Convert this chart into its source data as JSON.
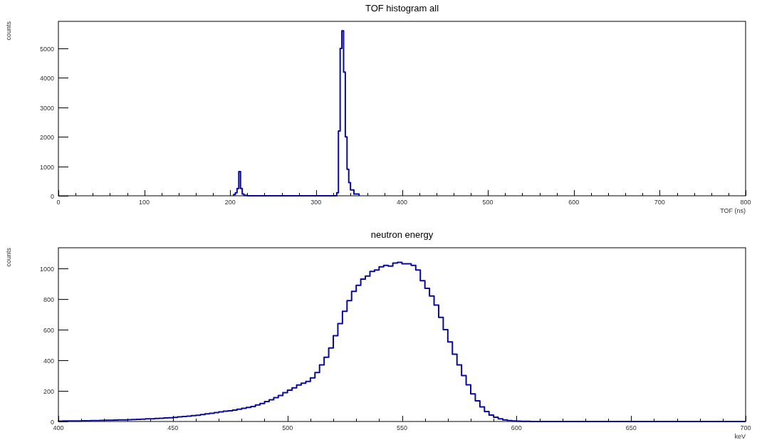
{
  "chart_data": [
    {
      "type": "histogram",
      "title": "TOF histogram all",
      "xlabel": "TOF (ns)",
      "ylabel": "counts",
      "color": "#0a0a99",
      "bins": [
        204,
        206,
        208,
        210,
        212,
        214,
        216,
        220,
        324,
        326,
        328,
        330,
        332,
        334,
        336,
        338,
        340,
        344,
        350
      ],
      "values": [
        40,
        100,
        250,
        820,
        250,
        60,
        20,
        0,
        100,
        2200,
        5000,
        5600,
        4200,
        2000,
        900,
        450,
        200,
        60
      ],
      "xlim": [
        0,
        800
      ],
      "ylim": [
        0,
        5920
      ],
      "xticks": [
        0,
        {
          "value": 20,
          "label": null
        },
        {
          "value": 40,
          "label": null
        },
        {
          "value": 60,
          "label": null
        },
        {
          "value": 80,
          "label": null
        },
        100,
        {
          "value": 120,
          "label": null
        },
        {
          "value": 140,
          "label": null
        },
        {
          "value": 160,
          "label": null
        },
        {
          "value": 180,
          "label": null
        },
        200,
        {
          "value": 220,
          "label": null
        },
        {
          "value": 240,
          "label": null
        },
        {
          "value": 260,
          "label": null
        },
        {
          "value": 280,
          "label": null
        },
        300,
        {
          "value": 320,
          "label": null
        },
        {
          "value": 340,
          "label": null
        },
        {
          "value": 360,
          "label": null
        },
        {
          "value": 380,
          "label": null
        },
        400,
        {
          "value": 420,
          "label": null
        },
        {
          "value": 440,
          "label": null
        },
        {
          "value": 460,
          "label": null
        },
        {
          "value": 480,
          "label": null
        },
        500,
        {
          "value": 520,
          "label": null
        },
        {
          "value": 540,
          "label": null
        },
        {
          "value": 560,
          "label": null
        },
        {
          "value": 580,
          "label": null
        },
        600,
        {
          "value": 620,
          "label": null
        },
        {
          "value": 640,
          "label": null
        },
        {
          "value": 660,
          "label": null
        },
        {
          "value": 680,
          "label": null
        },
        700,
        {
          "value": 720,
          "label": null
        },
        {
          "value": 740,
          "label": null
        },
        {
          "value": 760,
          "label": null
        },
        {
          "value": 780,
          "label": null
        },
        800
      ],
      "yticks": [
        0,
        1000,
        2000,
        3000,
        4000,
        5000
      ],
      "grid": false,
      "legend": false
    },
    {
      "type": "histogram",
      "title": "neutron energy",
      "xlabel": "keV",
      "ylabel": "counts",
      "color": "#0a0a99",
      "bins": [
        400,
        402,
        404,
        406,
        408,
        410,
        412,
        414,
        416,
        418,
        420,
        422,
        424,
        426,
        428,
        430,
        432,
        434,
        436,
        438,
        440,
        442,
        444,
        446,
        448,
        450,
        452,
        454,
        456,
        458,
        460,
        462,
        464,
        466,
        468,
        470,
        472,
        474,
        476,
        478,
        480,
        482,
        484,
        486,
        488,
        490,
        492,
        494,
        496,
        498,
        500,
        502,
        504,
        506,
        508,
        510,
        512,
        514,
        516,
        518,
        520,
        522,
        524,
        526,
        528,
        530,
        532,
        534,
        536,
        538,
        540,
        542,
        544,
        546,
        548,
        550,
        552,
        554,
        556,
        558,
        560,
        562,
        564,
        566,
        568,
        570,
        572,
        574,
        576,
        578,
        580,
        582,
        584,
        586,
        588,
        590,
        592,
        594,
        596,
        598,
        600,
        602,
        604,
        606,
        608,
        610,
        700
      ],
      "values": [
        2,
        3,
        3,
        4,
        4,
        5,
        5,
        6,
        6,
        7,
        8,
        8,
        9,
        10,
        11,
        12,
        13,
        14,
        15,
        17,
        18,
        20,
        21,
        23,
        25,
        27,
        30,
        32,
        35,
        38,
        41,
        45,
        50,
        54,
        58,
        63,
        67,
        70,
        74,
        80,
        86,
        92,
        98,
        108,
        118,
        130,
        142,
        156,
        170,
        188,
        205,
        220,
        238,
        250,
        262,
        285,
        320,
        370,
        420,
        480,
        560,
        640,
        720,
        790,
        850,
        890,
        930,
        950,
        980,
        990,
        1010,
        1020,
        1015,
        1035,
        1040,
        1030,
        1030,
        1020,
        990,
        920,
        870,
        820,
        760,
        680,
        600,
        520,
        440,
        370,
        300,
        240,
        180,
        135,
        95,
        65,
        42,
        28,
        17,
        10,
        6,
        3,
        2,
        1,
        1,
        0,
        0,
        0
      ],
      "xlim": [
        400,
        700
      ],
      "ylim": [
        0,
        1135
      ],
      "xticks": [
        400,
        {
          "value": 410,
          "label": null
        },
        {
          "value": 420,
          "label": null
        },
        {
          "value": 430,
          "label": null
        },
        {
          "value": 440,
          "label": null
        },
        450,
        {
          "value": 460,
          "label": null
        },
        {
          "value": 470,
          "label": null
        },
        {
          "value": 480,
          "label": null
        },
        {
          "value": 490,
          "label": null
        },
        500,
        {
          "value": 510,
          "label": null
        },
        {
          "value": 520,
          "label": null
        },
        {
          "value": 530,
          "label": null
        },
        {
          "value": 540,
          "label": null
        },
        550,
        {
          "value": 560,
          "label": null
        },
        {
          "value": 570,
          "label": null
        },
        {
          "value": 580,
          "label": null
        },
        {
          "value": 590,
          "label": null
        },
        600,
        {
          "value": 610,
          "label": null
        },
        {
          "value": 620,
          "label": null
        },
        {
          "value": 630,
          "label": null
        },
        {
          "value": 640,
          "label": null
        },
        650,
        {
          "value": 660,
          "label": null
        },
        {
          "value": 670,
          "label": null
        },
        {
          "value": 680,
          "label": null
        },
        {
          "value": 690,
          "label": null
        },
        700
      ],
      "yticks": [
        0,
        200,
        400,
        600,
        800,
        1000
      ],
      "grid": false,
      "legend": false
    }
  ]
}
